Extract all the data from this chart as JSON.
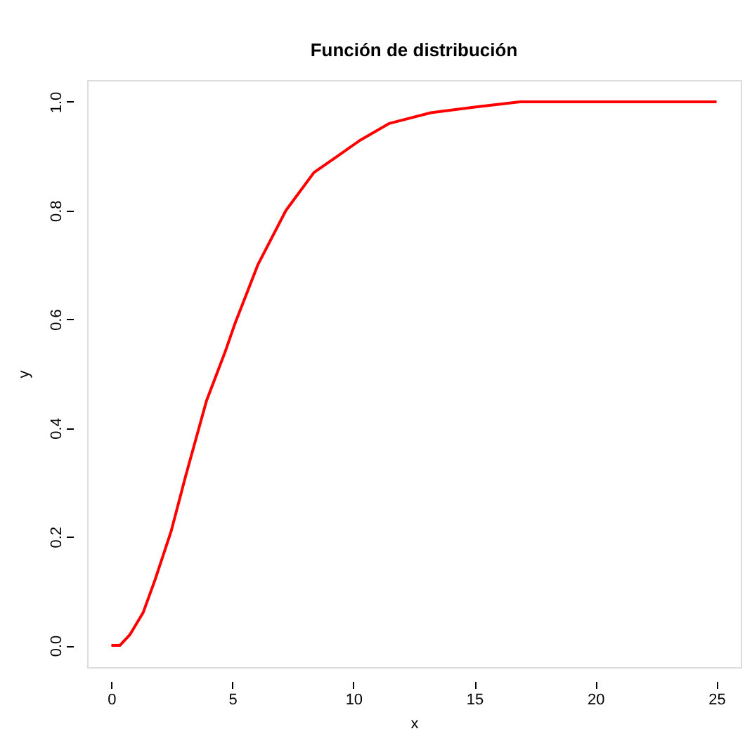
{
  "chart_data": {
    "type": "line",
    "title": "Función de distribución",
    "xlabel": "x",
    "ylabel": "y",
    "x": [
      0,
      0.35,
      0.77,
      1.31,
      1.8,
      2.47,
      3.06,
      3.93,
      4.7,
      5.09,
      6.05,
      7.21,
      8.37,
      9.34,
      10.3,
      11.47,
      13.2,
      14.95,
      16.88,
      19.78,
      25
    ],
    "series": [
      {
        "color": "#ff0000",
        "values": [
          0,
          0,
          0.02,
          0.06,
          0.12,
          0.21,
          0.31,
          0.45,
          0.54,
          0.59,
          0.7,
          0.8,
          0.87,
          0.9,
          0.93,
          0.96,
          0.98,
          0.99,
          1.0,
          1.0,
          1.0
        ]
      }
    ],
    "xlim": [
      -1,
      26
    ],
    "ylim": [
      -0.04,
      1.04
    ],
    "xticks": [
      0,
      5,
      10,
      15,
      20,
      25
    ],
    "yticks": [
      {
        "value": 0,
        "label": "0.0"
      },
      {
        "value": 0.2,
        "label": "0.2"
      },
      {
        "value": 0.4,
        "label": "0.4"
      },
      {
        "value": 0.6,
        "label": "0.6"
      },
      {
        "value": 0.8,
        "label": "0.8"
      },
      {
        "value": 1,
        "label": "1.0"
      }
    ],
    "grid": false,
    "marker": "none",
    "line_style": "solid"
  }
}
